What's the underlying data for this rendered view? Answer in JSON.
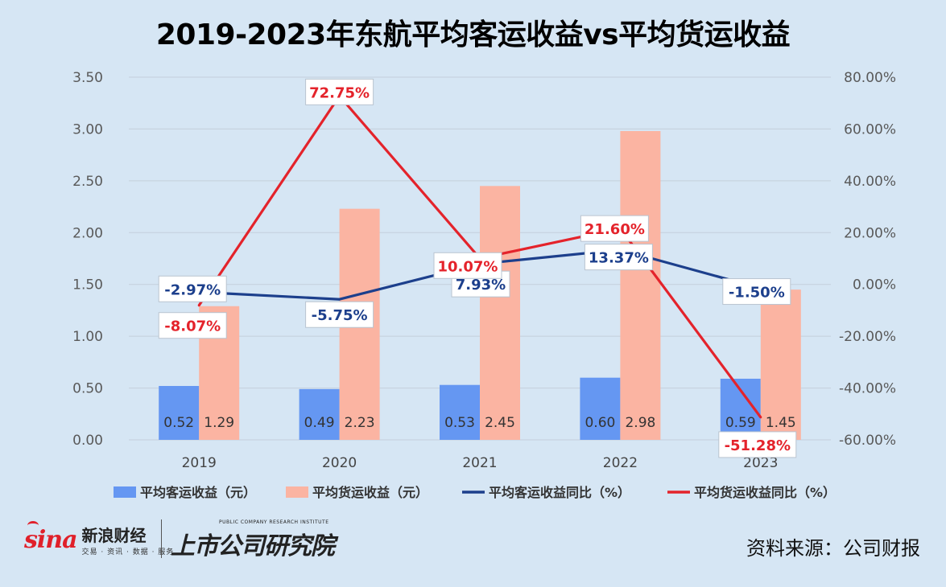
{
  "chart_data": {
    "type": "bar+line",
    "title": "2019-2023年东航平均客运收益vs平均货运收益",
    "categories": [
      "2019",
      "2020",
      "2021",
      "2022",
      "2023"
    ],
    "left_axis": {
      "ylim": [
        0,
        3.5
      ],
      "ticks": [
        "0.00",
        "0.50",
        "1.00",
        "1.50",
        "2.00",
        "2.50",
        "3.00",
        "3.50"
      ]
    },
    "right_axis": {
      "ylim": [
        -60,
        80
      ],
      "ticks": [
        "-60.00%",
        "-40.00%",
        "-20.00%",
        "0.00%",
        "20.00%",
        "40.00%",
        "60.00%",
        "80.00%"
      ]
    },
    "series": [
      {
        "name": "平均客运收益（元）",
        "type": "bar",
        "axis": "left",
        "color": "#6597f2",
        "values": [
          0.52,
          0.49,
          0.53,
          0.6,
          0.59
        ],
        "labels": [
          "0.52",
          "0.49",
          "0.53",
          "0.60",
          "0.59"
        ]
      },
      {
        "name": "平均货运收益（元）",
        "type": "bar",
        "axis": "left",
        "color": "#fbb4a2",
        "values": [
          1.29,
          2.23,
          2.45,
          2.98,
          1.45
        ],
        "labels": [
          "1.29",
          "2.23",
          "2.45",
          "2.98",
          "1.45"
        ]
      },
      {
        "name": "平均客运收益同比（%）",
        "type": "line",
        "axis": "right",
        "color": "#1c3f8c",
        "values": [
          -2.97,
          -5.75,
          7.93,
          13.37,
          -1.5
        ],
        "labels": [
          "-2.97%",
          "-5.75%",
          "7.93%",
          "13.37%",
          "-1.50%"
        ]
      },
      {
        "name": "平均货运收益同比（%）",
        "type": "line",
        "axis": "right",
        "color": "#e4232b",
        "values": [
          -8.07,
          72.75,
          10.07,
          21.6,
          -51.28
        ],
        "labels": [
          "-8.07%",
          "72.75%",
          "10.07%",
          "21.60%",
          "-51.28%"
        ]
      }
    ],
    "legend_position": "bottom"
  },
  "footer": {
    "sina_logo": "sina",
    "sina_name": "新浪财经",
    "sina_subtitle": "交易 · 资讯 · 数据 · 服务",
    "institute_subtitle": "PUBLIC COMPANY RESEARCH INSTITUTE",
    "institute_name": "上市公司研究院",
    "source": "资料来源：公司财报"
  },
  "colors": {
    "background": "#d6e6f4",
    "grid": "#c4cfdb"
  }
}
